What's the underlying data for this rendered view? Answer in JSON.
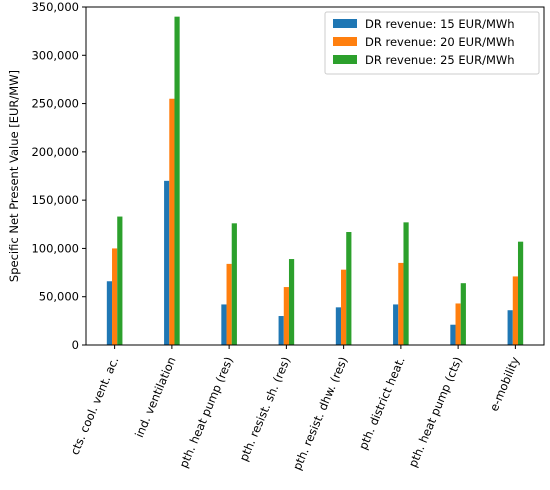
{
  "chart_data": {
    "type": "bar",
    "title": "",
    "xlabel": "",
    "ylabel": "Specific Net Present Value [EUR/MW]",
    "ylim": [
      0,
      350000
    ],
    "yticks": [
      0,
      50000,
      100000,
      150000,
      200000,
      250000,
      300000,
      350000
    ],
    "ytick_labels": [
      "0",
      "50,000",
      "100,000",
      "150,000",
      "200,000",
      "250,000",
      "300,000",
      "350,000"
    ],
    "grid": false,
    "legend_position": "top-right",
    "categories": [
      "cts. cool. vent. ac.",
      "ind. ventilation",
      "pth. heat pump (res)",
      "pth. resist. sh. (res)",
      "pth. resist. dhw. (res)",
      "pth. district heat.",
      "pth. heat pump (cts)",
      "e-mobility"
    ],
    "series": [
      {
        "name": "DR revenue: 15 EUR/MWh",
        "color": "#1f77b4",
        "values": [
          66000,
          170000,
          42000,
          30000,
          39000,
          42000,
          21000,
          36000
        ]
      },
      {
        "name": "DR revenue: 20 EUR/MWh",
        "color": "#ff7f0e",
        "values": [
          100000,
          255000,
          84000,
          60000,
          78000,
          85000,
          43000,
          71000
        ]
      },
      {
        "name": "DR revenue: 25 EUR/MWh",
        "color": "#2ca02c",
        "values": [
          133000,
          340000,
          126000,
          89000,
          117000,
          127000,
          64000,
          107000
        ]
      }
    ]
  }
}
